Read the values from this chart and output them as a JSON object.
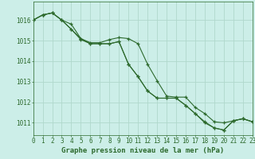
{
  "xlabel_label": "Graphe pression niveau de la mer (hPa)",
  "background_color": "#cceee8",
  "grid_color": "#b0d8cc",
  "line_color": "#2d6a2d",
  "xlim": [
    0,
    23
  ],
  "ylim": [
    1010.4,
    1016.9
  ],
  "yticks": [
    1011,
    1012,
    1013,
    1014,
    1015,
    1016
  ],
  "xticks": [
    0,
    1,
    2,
    3,
    4,
    5,
    6,
    7,
    8,
    9,
    10,
    11,
    12,
    13,
    14,
    15,
    16,
    17,
    18,
    19,
    20,
    21,
    22,
    23
  ],
  "series": [
    [
      1016.0,
      1016.25,
      1016.35,
      1016.0,
      1015.8,
      1015.1,
      1014.85,
      1014.85,
      1014.85,
      1014.95,
      1013.85,
      1013.25,
      1012.55,
      1012.2,
      1012.2,
      1012.2,
      1011.85,
      1011.45,
      1011.0,
      1010.75,
      1010.65,
      1011.1,
      1011.2,
      1011.05
    ],
    [
      1016.0,
      1016.25,
      1016.35,
      1016.0,
      1015.55,
      1015.05,
      1014.85,
      1014.85,
      1014.85,
      1014.95,
      1013.85,
      1013.25,
      1012.55,
      1012.2,
      1012.2,
      1012.2,
      1011.85,
      1011.45,
      1011.05,
      1010.75,
      1010.65,
      1011.1,
      1011.2,
      1011.05
    ],
    [
      1016.0,
      1016.25,
      1016.35,
      1016.0,
      1015.55,
      1015.1,
      1014.9,
      1014.9,
      1015.05,
      1015.15,
      1015.1,
      1014.85,
      1013.85,
      1013.05,
      1012.3,
      1012.25,
      1012.25,
      1011.75,
      1011.45,
      1011.05,
      1011.0,
      1011.1,
      1011.2,
      1011.05
    ]
  ],
  "font_color": "#2d6a2d",
  "font_size_ticks": 5.5,
  "font_size_title": 6.5
}
